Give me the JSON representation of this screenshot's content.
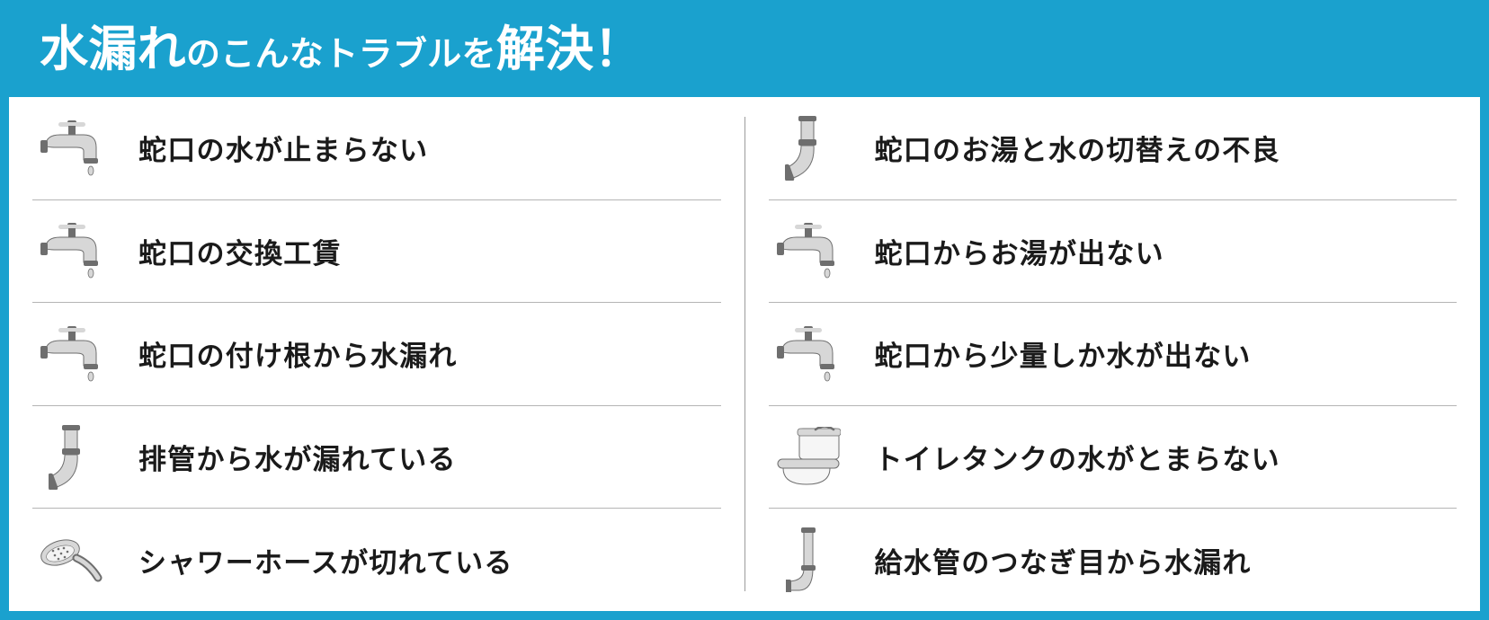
{
  "accent_color": "#1aa1ce",
  "header": {
    "p1": "水漏れ",
    "p2": "のこんなトラブルを",
    "p3": "解決！"
  },
  "left_items": [
    {
      "icon": "faucet",
      "label": "蛇口の水が止まらない"
    },
    {
      "icon": "faucet",
      "label": "蛇口の交換工賃"
    },
    {
      "icon": "faucet",
      "label": "蛇口の付け根から水漏れ"
    },
    {
      "icon": "pipe",
      "label": "排管から水が漏れている"
    },
    {
      "icon": "shower",
      "label": "シャワーホースが切れている"
    }
  ],
  "right_items": [
    {
      "icon": "pipe",
      "label": "蛇口のお湯と水の切替えの不良"
    },
    {
      "icon": "faucet",
      "label": "蛇口からお湯が出ない"
    },
    {
      "icon": "faucet",
      "label": "蛇口から少量しか水が出ない"
    },
    {
      "icon": "toilet",
      "label": "トイレタンクの水がとまらない"
    },
    {
      "icon": "pipe2",
      "label": "給水管のつなぎ目から水漏れ"
    }
  ],
  "icon_color": "#6e6e6e",
  "icon_hilite": "#d7d7d7",
  "divider_color": "#b5b5b5",
  "text_color": "#1a1a1a",
  "label_fontsize": 31
}
